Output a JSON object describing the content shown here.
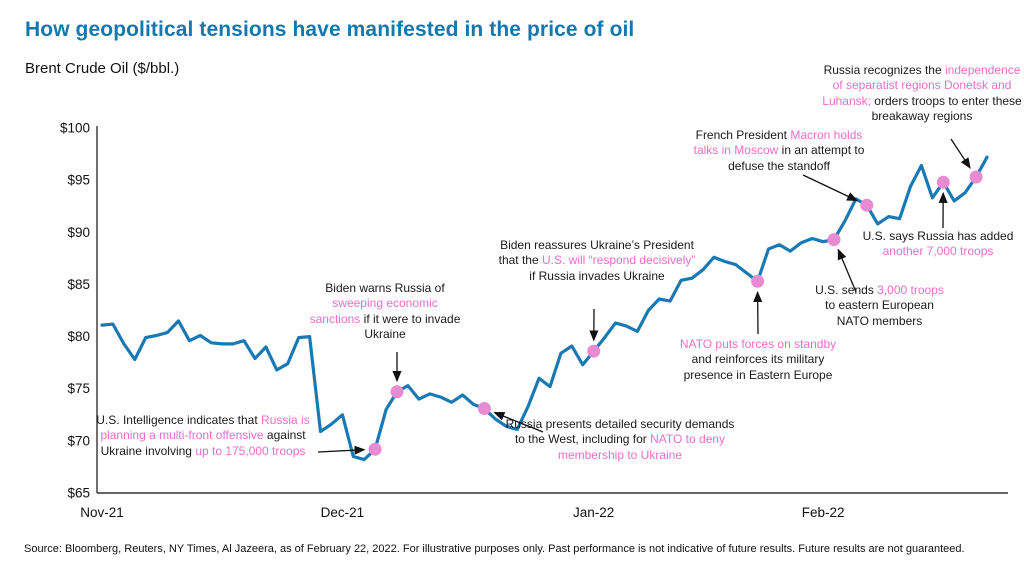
{
  "title": "How geopolitical tensions have manifested in the price of oil",
  "subtitle": "Brent Crude Oil ($/bbl.)",
  "source": "Source: Bloomberg, Reuters, NY Times, Al Jazeera, as of February 22, 2022. For illustrative purposes only. Past performance is not indicative of future results. Future results are not guaranteed.",
  "colors": {
    "title_blue": "#1477ad",
    "line_blue": "#1879b4",
    "annotation_pink": "#ea6ec9",
    "dot_pink": "#e88bd3",
    "axis": "#333333"
  },
  "chart_data": {
    "type": "line",
    "title": "Brent Crude Oil ($/bbl.)",
    "xlabel": "",
    "ylabel": "$/bbl.",
    "ylim": [
      65,
      100
    ],
    "grid": false,
    "y_ticks": [
      {
        "label": "$65",
        "value": 65
      },
      {
        "label": "$70",
        "value": 70
      },
      {
        "label": "$75",
        "value": 75
      },
      {
        "label": "$80",
        "value": 80
      },
      {
        "label": "$85",
        "value": 85
      },
      {
        "label": "$90",
        "value": 90
      },
      {
        "label": "$95",
        "value": 95
      },
      {
        "label": "$100",
        "value": 100
      }
    ],
    "x_ticks": [
      {
        "label": "Nov-21",
        "index": 0
      },
      {
        "label": "Dec-21",
        "index": 22
      },
      {
        "label": "Jan-22",
        "index": 45
      },
      {
        "label": "Feb-22",
        "index": 66
      }
    ],
    "series": [
      {
        "name": "Brent Crude Oil ($/bbl.)",
        "values": [
          81.1,
          81.2,
          79.3,
          77.8,
          79.9,
          80.1,
          80.4,
          81.5,
          79.6,
          80.1,
          79.4,
          79.3,
          79.3,
          79.6,
          77.9,
          79.0,
          76.8,
          77.4,
          79.9,
          80.0,
          70.9,
          71.6,
          72.5,
          68.5,
          68.2,
          69.2,
          73.0,
          74.7,
          75.3,
          74.0,
          74.5,
          74.2,
          73.7,
          74.4,
          73.5,
          73.1,
          72.1,
          71.4,
          71.1,
          73.3,
          76.0,
          75.2,
          78.4,
          79.1,
          77.3,
          78.6,
          79.9,
          81.3,
          81.0,
          80.5,
          82.5,
          83.6,
          83.4,
          85.4,
          85.6,
          86.4,
          87.6,
          87.2,
          86.9,
          86.1,
          85.3,
          88.4,
          88.8,
          88.2,
          89.0,
          89.4,
          89.1,
          89.3,
          91.1,
          93.2,
          92.6,
          90.8,
          91.5,
          91.3,
          94.4,
          96.4,
          93.3,
          94.8,
          93.0,
          93.8,
          95.3,
          97.2
        ]
      }
    ],
    "events": [
      {
        "index": 25,
        "value": 69.2,
        "annotation": "intel"
      },
      {
        "index": 27,
        "value": 74.7,
        "annotation": "sanctions"
      },
      {
        "index": 35,
        "value": 73.1,
        "annotation": "demands"
      },
      {
        "index": 45,
        "value": 78.6,
        "annotation": "reassure"
      },
      {
        "index": 60,
        "value": 85.3,
        "annotation": "nato_standby"
      },
      {
        "index": 67,
        "value": 89.3,
        "annotation": "troops_3000"
      },
      {
        "index": 70,
        "value": 92.6,
        "annotation": "macron"
      },
      {
        "index": 77,
        "value": 94.8,
        "annotation": "troops_7000"
      },
      {
        "index": 80,
        "value": 95.3,
        "annotation": "recognition"
      }
    ]
  },
  "annotations": [
    {
      "id": "intel",
      "segments": [
        {
          "text": "U.S. Intelligence indicates that ",
          "highlight": false
        },
        {
          "text": "Russia is planning a multi-front offensive",
          "highlight": true
        },
        {
          "text": " against Ukraine involving ",
          "highlight": false
        },
        {
          "text": "up to 175,000 troops",
          "highlight": true
        }
      ]
    },
    {
      "id": "sanctions",
      "segments": [
        {
          "text": "Biden warns Russia of ",
          "highlight": false
        },
        {
          "text": "sweeping economic sanctions",
          "highlight": true
        },
        {
          "text": " if it were to invade Ukraine",
          "highlight": false
        }
      ]
    },
    {
      "id": "demands",
      "segments": [
        {
          "text": "Russia presents detailed security demands to the West, including for ",
          "highlight": false
        },
        {
          "text": "NATO to deny membership to Ukraine",
          "highlight": true
        }
      ]
    },
    {
      "id": "reassure",
      "segments": [
        {
          "text": "Biden reassures Ukraine’s President that the ",
          "highlight": false
        },
        {
          "text": "U.S. will “respond decisively”",
          "highlight": true
        },
        {
          "text": " if Russia invades Ukraine",
          "highlight": false
        }
      ]
    },
    {
      "id": "nato_standby",
      "segments": [
        {
          "text": "NATO puts forces on standby",
          "highlight": true
        },
        {
          "text": " and reinforces its military presence in Eastern Europe",
          "highlight": false
        }
      ]
    },
    {
      "id": "troops_3000",
      "segments": [
        {
          "text": "U.S. sends ",
          "highlight": false
        },
        {
          "text": "3,000 troops",
          "highlight": true
        },
        {
          "text": " to eastern European NATO members",
          "highlight": false
        }
      ]
    },
    {
      "id": "macron",
      "segments": [
        {
          "text": "French President ",
          "highlight": false
        },
        {
          "text": "Macron holds talks in Moscow",
          "highlight": true
        },
        {
          "text": " in an attempt to defuse the standoff",
          "highlight": false
        }
      ]
    },
    {
      "id": "troops_7000",
      "segments": [
        {
          "text": "U.S. says Russia has added ",
          "highlight": false
        },
        {
          "text": "another 7,000 troops",
          "highlight": true
        }
      ]
    },
    {
      "id": "recognition",
      "segments": [
        {
          "text": "Russia recognizes the ",
          "highlight": false
        },
        {
          "text": "independence of separatist regions Donetsk and Luhansk;",
          "highlight": true
        },
        {
          "text": " orders troops to enter these breakaway regions",
          "highlight": false
        }
      ]
    }
  ]
}
